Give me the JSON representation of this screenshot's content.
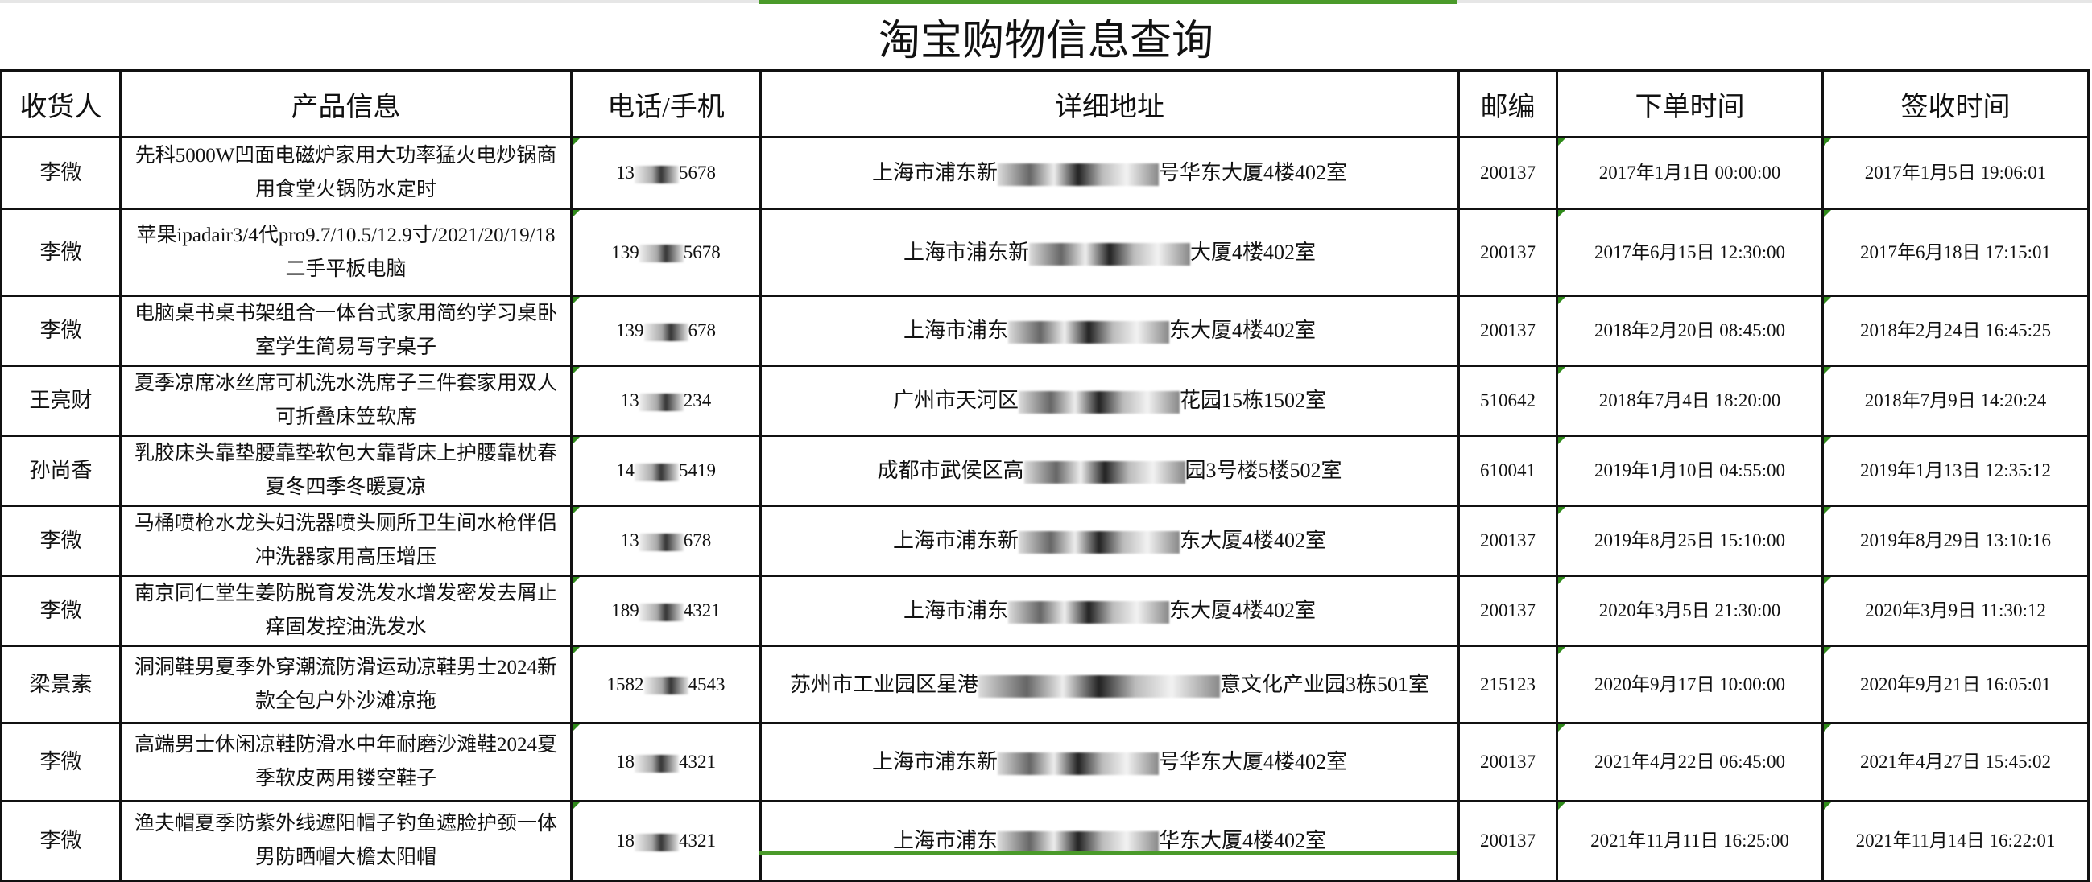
{
  "title": "淘宝购物信息查询",
  "columns": [
    "收货人",
    "产品信息",
    "电话/手机",
    "详细地址",
    "邮编",
    "下单时间",
    "签收时间"
  ],
  "rows": [
    {
      "name": "李微",
      "product": "先科5000W凹面电磁炉家用大功率猛火电炒锅商用食堂火锅防水定时",
      "phone_pre": "13",
      "phone_suf": "5678",
      "addr_pre": "上海市浦东新",
      "addr_suf": "号华东大厦4楼402室",
      "zip": "200137",
      "order": "2017年1月1日 00:00:00",
      "sign": "2017年1月5日 19:06:01"
    },
    {
      "name": "李微",
      "product": "苹果ipadair3/4代pro9.7/10.5/12.9寸/2021/20/19/18二手平板电脑",
      "phone_pre": "139",
      "phone_suf": "5678",
      "addr_pre": "上海市浦东新",
      "addr_suf": "大厦4楼402室",
      "zip": "200137",
      "order": "2017年6月15日 12:30:00",
      "sign": "2017年6月18日 17:15:01"
    },
    {
      "name": "李微",
      "product": "电脑桌书桌书架组合一体台式家用简约学习桌卧室学生简易写字桌子",
      "phone_pre": "139",
      "phone_suf": "678",
      "addr_pre": "上海市浦东",
      "addr_suf": "东大厦4楼402室",
      "zip": "200137",
      "order": "2018年2月20日 08:45:00",
      "sign": "2018年2月24日 16:45:25"
    },
    {
      "name": "王亮财",
      "product": "夏季凉席冰丝席可机洗水洗席子三件套家用双人可折叠床笠软席",
      "phone_pre": "13",
      "phone_suf": "234",
      "addr_pre": "广州市天河区",
      "addr_suf": "花园15栋1502室",
      "zip": "510642",
      "order": "2018年7月4日 18:20:00",
      "sign": "2018年7月9日 14:20:24"
    },
    {
      "name": "孙尚香",
      "product": "乳胶床头靠垫腰靠垫软包大靠背床上护腰靠枕春夏冬四季冬暖夏凉",
      "phone_pre": "14",
      "phone_suf": "5419",
      "addr_pre": "成都市武侯区高",
      "addr_suf": "园3号楼5楼502室",
      "zip": "610041",
      "order": "2019年1月10日 04:55:00",
      "sign": "2019年1月13日 12:35:12"
    },
    {
      "name": "李微",
      "product": "马桶喷枪水龙头妇洗器喷头厕所卫生间水枪伴侣冲洗器家用高压增压",
      "phone_pre": "13",
      "phone_suf": "678",
      "addr_pre": "上海市浦东新",
      "addr_suf": "东大厦4楼402室",
      "zip": "200137",
      "order": "2019年8月25日 15:10:00",
      "sign": "2019年8月29日 13:10:16"
    },
    {
      "name": "李微",
      "product": "南京同仁堂生姜防脱育发洗发水增发密发去屑止痒固发控油洗发水",
      "phone_pre": "189",
      "phone_suf": "4321",
      "addr_pre": "上海市浦东",
      "addr_suf": "东大厦4楼402室",
      "zip": "200137",
      "order": "2020年3月5日 21:30:00",
      "sign": "2020年3月9日 11:30:12"
    },
    {
      "name": "梁景素",
      "product": "洞洞鞋男夏季外穿潮流防滑运动凉鞋男士2024新款全包户外沙滩凉拖",
      "phone_pre": "1582",
      "phone_suf": "4543",
      "addr_pre": "苏州市工业园区星港",
      "addr_suf": "意文化产业园3栋501室",
      "zip": "215123",
      "order": "2020年9月17日 10:00:00",
      "sign": "2020年9月21日 16:05:01"
    },
    {
      "name": "李微",
      "product": "高端男士休闲凉鞋防滑水中年耐磨沙滩鞋2024夏季软皮两用镂空鞋子",
      "phone_pre": "18",
      "phone_suf": "4321",
      "addr_pre": "上海市浦东新",
      "addr_suf": "号华东大厦4楼402室",
      "zip": "200137",
      "order": "2021年4月22日 06:45:00",
      "sign": "2021年4月27日 15:45:02"
    },
    {
      "name": "李微",
      "product": "渔夫帽夏季防紫外线遮阳帽子钓鱼遮脸护颈一体男防晒帽大檐太阳帽",
      "phone_pre": "18",
      "phone_suf": "4321",
      "addr_pre": "上海市浦东",
      "addr_suf": "华东大厦4楼402室",
      "zip": "200137",
      "order": "2021年11月11日 16:25:00",
      "sign": "2021年11月14日 16:22:01"
    }
  ],
  "colors": {
    "selection_green": "#4a9a2a",
    "comment_marker": "#2f8a1a"
  }
}
